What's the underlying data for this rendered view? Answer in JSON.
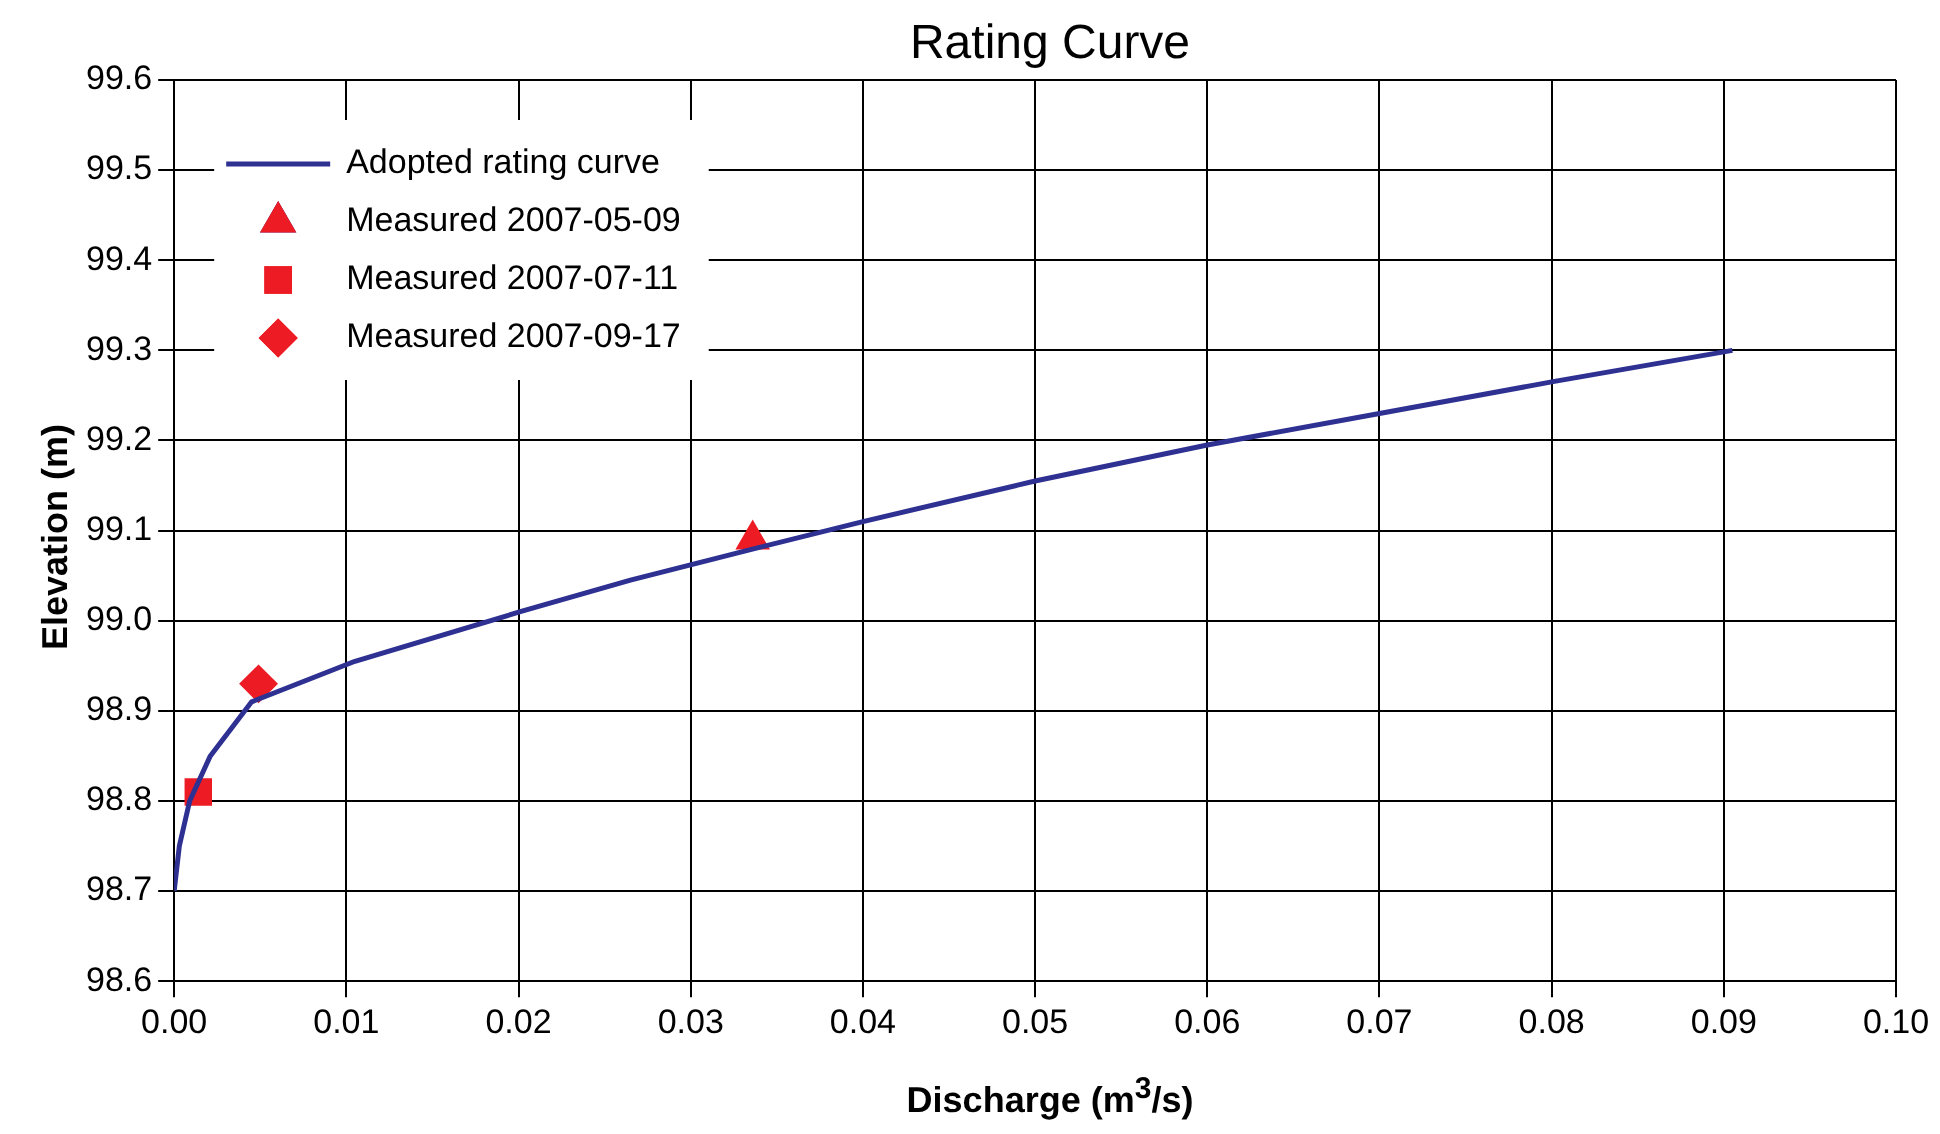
{
  "chart_data": {
    "type": "line",
    "title": "Rating Curve",
    "xlabel": "Discharge (m$^{3}$/s)",
    "ylabel": "Elevation (m)",
    "xlim": [
      0,
      0.1
    ],
    "xticks": [
      {
        "value": 0,
        "label": "0.00"
      },
      {
        "value": 0.01,
        "label": "0.01"
      },
      {
        "value": 0.02,
        "label": "0.02"
      },
      {
        "value": 0.03,
        "label": "0.03"
      },
      {
        "value": 0.04,
        "label": "0.04"
      },
      {
        "value": 0.05,
        "label": "0.05"
      },
      {
        "value": 0.06,
        "label": "0.06"
      },
      {
        "value": 0.07,
        "label": "0.07"
      },
      {
        "value": 0.08,
        "label": "0.08"
      },
      {
        "value": 0.09,
        "label": "0.09"
      },
      {
        "value": 0.1,
        "label": "0.10"
      }
    ],
    "ylim": [
      98.6,
      99.6
    ],
    "yticks": [
      98.6,
      98.7,
      98.8,
      98.9,
      {
        "value": 99,
        "label": "99.0"
      },
      99.1,
      99.2,
      99.3,
      99.4,
      99.5,
      99.6
    ],
    "grid": true,
    "legend": "top left",
    "series": [
      {
        "name": "Adopted rating curve",
        "color": "#2e3192",
        "marker": "none",
        "x": [
          0,
          0.0003,
          0.0009,
          0.0021,
          0.0045,
          0.0105,
          0.0201,
          0.0265,
          0.0337,
          0.04,
          0.05,
          0.06,
          0.07,
          0.08,
          0.0905
        ],
        "values": [
          98.7,
          98.75,
          98.8,
          98.85,
          98.91,
          98.955,
          99.01,
          99.045,
          99.08,
          99.11,
          99.155,
          99.195,
          99.23,
          99.265,
          99.3
        ]
      },
      {
        "name": "Measured 2007-05-09",
        "type": "scatter",
        "color": "#ed1c24",
        "marker": "triangle",
        "x": [
          0.0336
        ],
        "values": [
          99.09
        ]
      },
      {
        "name": "Measured 2007-07-11",
        "type": "scatter",
        "color": "#ed1c24",
        "marker": "square",
        "x": [
          0.0014
        ],
        "values": [
          98.81
        ]
      },
      {
        "name": "Measured 2007-09-17",
        "type": "scatter",
        "color": "#ed1c24",
        "marker": "diamond",
        "x": [
          0.0049
        ],
        "values": [
          98.93
        ]
      }
    ]
  }
}
